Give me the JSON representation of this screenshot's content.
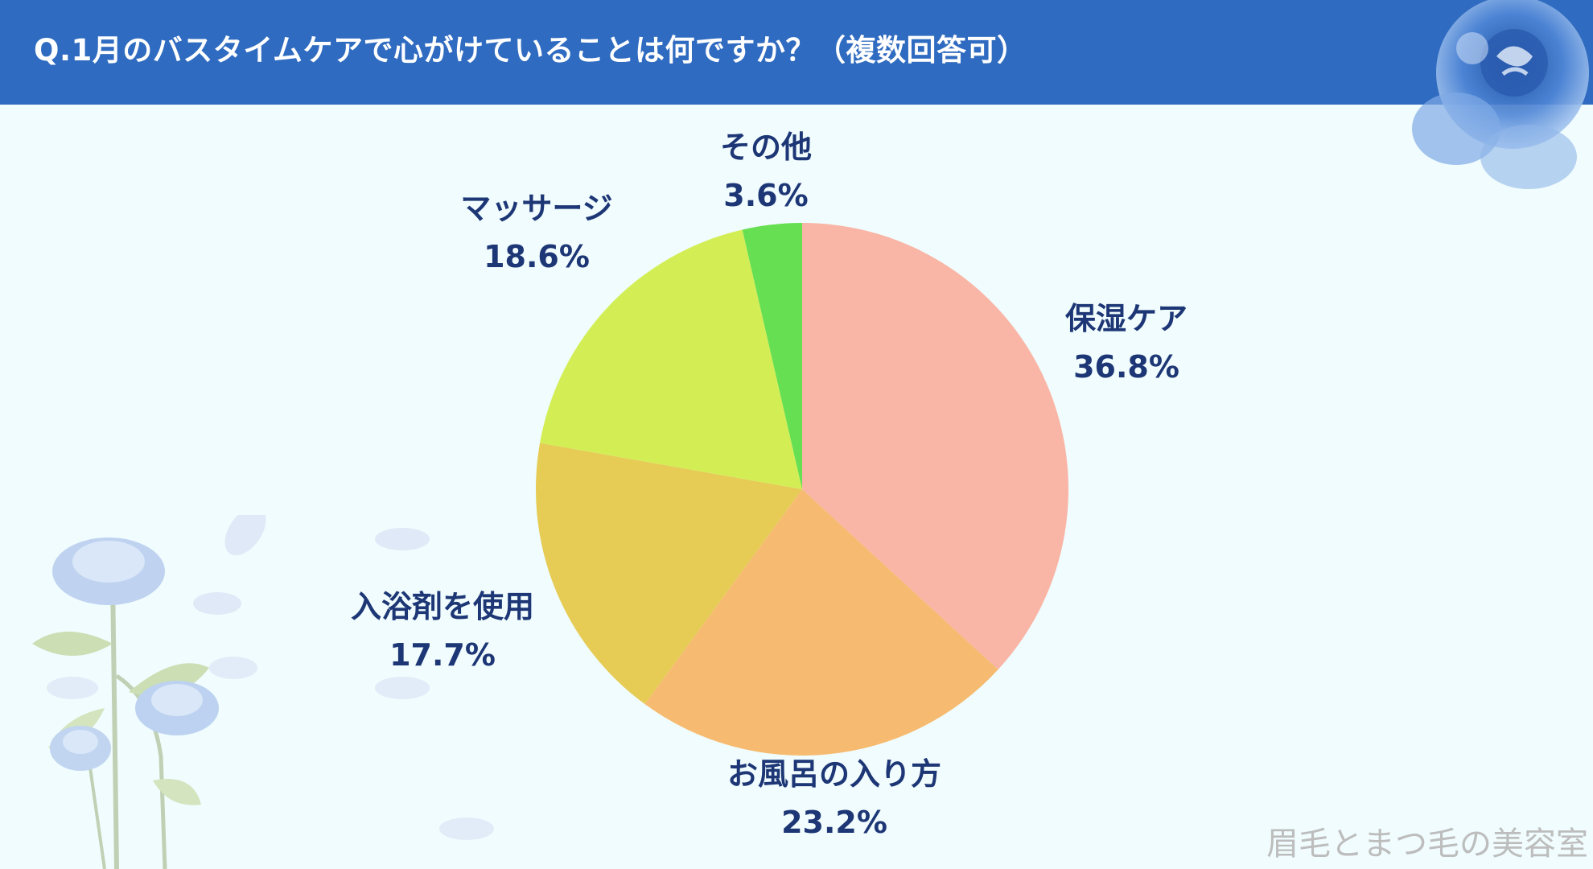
{
  "header": {
    "title": "Q.1月のバスタイムケアで心がけていることは何ですか？（複数回答可）",
    "bg_color": "#2f6bc0"
  },
  "chart_data": {
    "type": "pie",
    "title": "Q.1月のバスタイムケアで心がけていることは何ですか？（複数回答可）",
    "categories": [
      "保湿ケア",
      "お風呂の入り方",
      "入浴剤を使用",
      "マッサージ",
      "その他"
    ],
    "values": [
      36.8,
      23.2,
      17.7,
      18.6,
      3.6
    ],
    "value_labels": [
      "36.8%",
      "23.2%",
      "17.7%",
      "18.6%",
      "3.6%"
    ],
    "colors": [
      "#f9b5a5",
      "#f6bb70",
      "#e6cc55",
      "#d3ee55",
      "#66e052"
    ],
    "start": "12 o'clock",
    "direction": "clockwise",
    "legend": "none"
  },
  "watermark": "眉毛とまつ毛の美容室",
  "colors": {
    "background": "#f0fcfd",
    "label_text": "#1d3675"
  }
}
